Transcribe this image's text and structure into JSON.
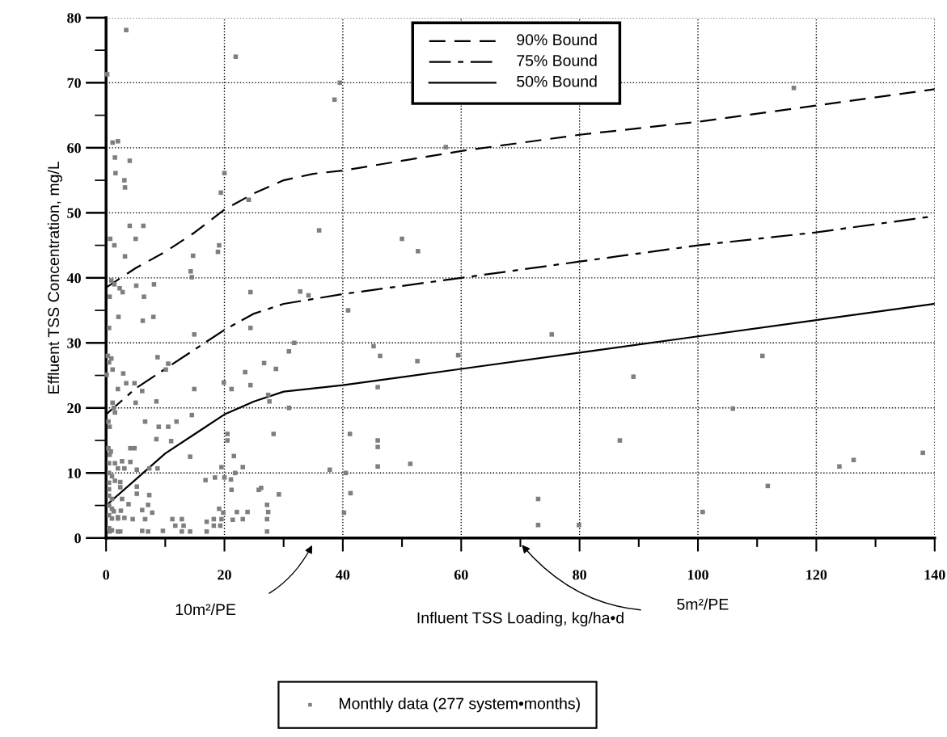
{
  "chart_data": {
    "type": "scatter",
    "xlabel": "Influent TSS Loading, kg/ha•d",
    "ylabel": "Effluent TSS Concentration, mg/L",
    "xlim": [
      0,
      140
    ],
    "ylim": [
      0,
      80
    ],
    "xticks": [
      0,
      20,
      40,
      60,
      80,
      100,
      120,
      140
    ],
    "yticks": [
      0,
      10,
      20,
      30,
      40,
      50,
      60,
      70,
      80
    ],
    "grid": true,
    "legend": "bottom",
    "annotations": [
      "10m²/PE",
      "5m²/PE"
    ],
    "series": [
      {
        "name": "90% Bound",
        "type": "line",
        "color": "#000000",
        "line_style": "dashed",
        "marker": "none",
        "x": [
          0,
          5,
          10,
          15,
          20,
          25,
          30,
          35,
          40,
          60,
          80,
          100,
          120,
          140
        ],
        "values": [
          38.5,
          41.5,
          44,
          47,
          50.5,
          53,
          55,
          56,
          56.5,
          59.5,
          62,
          64,
          66.5,
          69
        ]
      },
      {
        "name": "75% Bound",
        "type": "line",
        "color": "#000000",
        "line_style": "dashdot",
        "marker": "none",
        "x": [
          0,
          5,
          10,
          15,
          20,
          25,
          30,
          40,
          60,
          80,
          100,
          120,
          140
        ],
        "values": [
          19,
          23,
          26,
          29,
          32,
          34.5,
          36,
          37.5,
          40,
          42.5,
          45,
          47,
          49.5
        ]
      },
      {
        "name": "50% Bound",
        "type": "line",
        "color": "#000000",
        "line_style": "solid",
        "marker": "none",
        "x": [
          0,
          5,
          10,
          15,
          20,
          25,
          30,
          35,
          40,
          60,
          80,
          100,
          120,
          140
        ],
        "values": [
          5,
          9,
          13,
          16,
          19,
          21,
          22.5,
          23,
          23.5,
          26,
          28.5,
          31,
          33.5,
          36
        ]
      },
      {
        "name": "Monthly data (277 system•months)",
        "color": "#7f7f7f",
        "marker": "square",
        "x": [
          3.4,
          0.2,
          1.1,
          2.0,
          1.5,
          4.0,
          1.6,
          3.1,
          3.2,
          21.9,
          20.0,
          19.4,
          24.1,
          4.0,
          6.3,
          0.7,
          1.4,
          5.0,
          3.2,
          14.7,
          19.1,
          18.9,
          14.3,
          14.5,
          0.9,
          1.4,
          2.3,
          2.8,
          5.1,
          8.1,
          0.6,
          6.4,
          2.1,
          6.2,
          8.0,
          0.5,
          14.9,
          24.4,
          24.4,
          39.5,
          38.6,
          57.4,
          36.0,
          50.0,
          52.7,
          32.8,
          34.2,
          40.9,
          75.3,
          0.3,
          0.9,
          0.5,
          1.1,
          0.1,
          2.9,
          8.7,
          10.5,
          10.1,
          3.4,
          4.8,
          2.0,
          6.1,
          14.9,
          19.9,
          21.2,
          23.5,
          24.4,
          26.7,
          28.7,
          27.4,
          27.6,
          30.9,
          1.1,
          1.3,
          1.5,
          5.0,
          8.5,
          14.5,
          0.4,
          0.6,
          6.6,
          8.9,
          10.5,
          11.9,
          8.5,
          11.0,
          0.4,
          0.8,
          0.6,
          4.1,
          4.8,
          14.2,
          20.5,
          20.5,
          21.6,
          23.1,
          21.8,
          19.5,
          18.4,
          16.8,
          20.0,
          21.1,
          28.3,
          26.2,
          25.8,
          21.2,
          29.2,
          0.5,
          1.5,
          0.5,
          1.0,
          0.5,
          1.5,
          0.5,
          0.5,
          1.0,
          0.5,
          1.0,
          2.5,
          0.5,
          1.0,
          2.0,
          0.5,
          1.0,
          2.0,
          2.7,
          4.1,
          2.0,
          3.1,
          5.2,
          7.3,
          8.7,
          2.4,
          2.4,
          5.2,
          5.2,
          7.3,
          2.7,
          3.8,
          7.1,
          6.1,
          7.8,
          1.3,
          2.0,
          3.1,
          4.5,
          6.6,
          11.2,
          12.8,
          11.7,
          13.1,
          17.0,
          18.2,
          19.5,
          18.2,
          19.3,
          19.1,
          19.8,
          21.4,
          22.1,
          23.9,
          23.1,
          27.2,
          27.4,
          27.2,
          27.2,
          0.6,
          2.4,
          6.1,
          7.1,
          9.6,
          12.8,
          14.2,
          17.0,
          31.8,
          30.9,
          45.2,
          46.3,
          52.6,
          59.5,
          45.9,
          41.2,
          45.9,
          45.9,
          45.9,
          51.4,
          37.8,
          40.5,
          41.3,
          40.2,
          73.0,
          73.0,
          79.9,
          86.8,
          116.2,
          110.9,
          89.1,
          105.9,
          123.9,
          126.3,
          138.0,
          111.8,
          100.8
        ],
        "values": [
          78.1,
          71.3,
          60.8,
          61.0,
          58.5,
          58.0,
          56.1,
          55.0,
          53.9,
          74.0,
          56.1,
          53.1,
          52.0,
          48.0,
          48.0,
          46.0,
          45.0,
          46.0,
          43.3,
          43.4,
          45.0,
          44.0,
          41.0,
          40.1,
          39.6,
          39.0,
          38.4,
          37.8,
          38.8,
          39.0,
          37.1,
          37.1,
          34.0,
          33.4,
          34.0,
          32.3,
          31.3,
          32.3,
          37.8,
          70.0,
          67.4,
          60.1,
          47.3,
          46.0,
          44.1,
          37.9,
          37.3,
          35.0,
          31.3,
          28.0,
          27.6,
          27.0,
          25.9,
          25.1,
          25.3,
          27.8,
          26.8,
          25.9,
          23.8,
          23.8,
          22.9,
          22.6,
          22.9,
          23.9,
          22.9,
          25.5,
          23.5,
          26.9,
          26.0,
          22.0,
          21.0,
          20.0,
          20.8,
          20.0,
          19.3,
          20.8,
          21.0,
          18.9,
          17.9,
          17.1,
          17.9,
          17.1,
          17.1,
          17.9,
          15.2,
          14.9,
          13.8,
          13.3,
          12.8,
          13.8,
          13.8,
          12.5,
          16.0,
          15.0,
          12.6,
          10.9,
          10.0,
          10.9,
          9.3,
          8.9,
          9.3,
          9.0,
          16.0,
          7.7,
          7.4,
          7.4,
          6.7,
          11.5,
          11.5,
          10.0,
          9.5,
          8.5,
          8.8,
          7.5,
          6.5,
          6.0,
          5.0,
          4.5,
          4.2,
          3.5,
          3.0,
          3.0,
          1.5,
          1.2,
          1.0,
          11.8,
          11.7,
          10.7,
          10.7,
          10.5,
          10.7,
          10.7,
          8.6,
          7.8,
          7.9,
          6.8,
          6.6,
          6.0,
          5.2,
          5.1,
          4.3,
          3.9,
          4.1,
          3.2,
          3.1,
          2.9,
          2.9,
          2.9,
          2.9,
          1.9,
          1.9,
          2.5,
          2.9,
          2.9,
          1.9,
          1.9,
          4.5,
          3.9,
          2.8,
          4.0,
          4.0,
          2.9,
          5.1,
          4.0,
          2.9,
          1.0,
          1.0,
          1.0,
          1.1,
          1.0,
          1.1,
          1.0,
          1.0,
          1.0,
          30.0,
          28.7,
          29.5,
          28.0,
          27.2,
          28.1,
          23.2,
          16.0,
          15.0,
          14.0,
          11.0,
          11.4,
          10.5,
          10.0,
          6.9,
          3.9,
          6.0,
          2.0,
          2.0,
          15.0,
          69.2,
          28.0,
          24.8,
          19.9,
          11.0,
          12.0,
          13.1,
          8.0,
          4.0
        ]
      }
    ]
  }
}
